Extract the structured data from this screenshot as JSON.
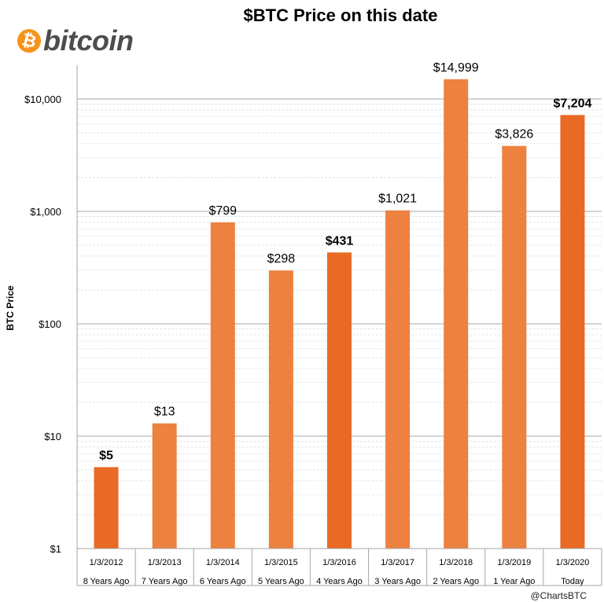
{
  "logo": {
    "symbol": "₿",
    "word": "bitcoin"
  },
  "credit": "@ChartsBTC",
  "colors": {
    "bar": "#ed8140",
    "bar_highlight": "#e86a24",
    "brand": "#f7931a",
    "grid": "#c8c8c8"
  },
  "chart_data": {
    "type": "bar",
    "title": "$BTC Price on this date",
    "ylabel": "BTC Price",
    "xlabel": "",
    "yscale": "log",
    "ylim": [
      1,
      20000
    ],
    "yticks": [
      1,
      10,
      100,
      1000,
      10000
    ],
    "ytick_labels": [
      "$1",
      "$10",
      "$100",
      "$1,000",
      "$10,000"
    ],
    "categories": [
      "1/3/2012",
      "1/3/2013",
      "1/3/2014",
      "1/3/2015",
      "1/3/2016",
      "1/3/2017",
      "1/3/2018",
      "1/3/2019",
      "1/3/2020"
    ],
    "subcategories": [
      "8 Years Ago",
      "7 Years Ago",
      "6 Years Ago",
      "5 Years Ago",
      "4 Years Ago",
      "3 Years Ago",
      "2 Years Ago",
      "1 Year Ago",
      "Today"
    ],
    "values": [
      5.3,
      13,
      799,
      298,
      431,
      1021,
      14999,
      3826,
      7204
    ],
    "data_labels": [
      "$5",
      "$13",
      "$799",
      "$298",
      "$431",
      "$1,021",
      "$14,999",
      "$3,826",
      "$7,204"
    ],
    "highlighted": [
      true,
      false,
      false,
      false,
      true,
      false,
      false,
      false,
      true
    ],
    "grid": true,
    "legend": "none"
  }
}
